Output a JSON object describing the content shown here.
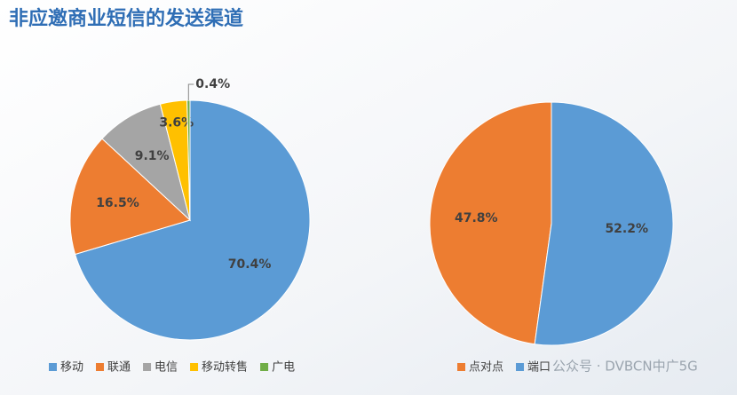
{
  "title": "非应邀商业短信的发送渠道",
  "watermark": "公众号 · DVBCN中广5G",
  "chart_data": [
    {
      "type": "pie",
      "direction": "clockwise",
      "categories": [
        "移动",
        "联通",
        "电信",
        "移动转售",
        "广电"
      ],
      "values": [
        70.4,
        16.5,
        9.1,
        3.6,
        0.4
      ],
      "value_labels": [
        "70.4%",
        "16.5%",
        "9.1%",
        "3.6%",
        "0.4%"
      ],
      "colors": [
        "#5b9bd5",
        "#ed7d31",
        "#a5a5a5",
        "#ffc000",
        "#70ad47"
      ]
    },
    {
      "type": "pie",
      "direction": "counterclockwise",
      "categories": [
        "点对点",
        "端口"
      ],
      "values": [
        47.8,
        52.2
      ],
      "value_labels": [
        "47.8%",
        "52.2%"
      ],
      "colors": [
        "#ed7d31",
        "#5b9bd5"
      ]
    }
  ]
}
